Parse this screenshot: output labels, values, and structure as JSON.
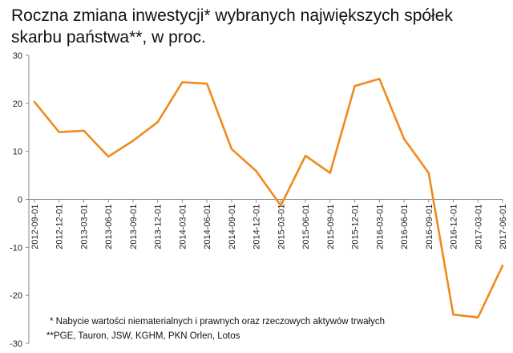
{
  "chart_data": {
    "type": "line",
    "title": "Roczna zmiana inwestycji* wybranych największych spółek skarbu państwa**, w proc.",
    "xlabel": "",
    "ylabel": "",
    "ylim": [
      -30,
      30
    ],
    "yticks": [
      30,
      20,
      10,
      0,
      -10,
      -20,
      -30
    ],
    "grid": false,
    "legend": "none",
    "line_color": "#f08a1c",
    "categories": [
      "2012-09-01",
      "2012-12-01",
      "2013-03-01",
      "2013-06-01",
      "2013-09-01",
      "2013-12-01",
      "2014-03-01",
      "2014-06-01",
      "2014-09-01",
      "2014-12-01",
      "2015-03-01",
      "2015-06-01",
      "2015-09-01",
      "2015-12-01",
      "2016-03-01",
      "2016-06-01",
      "2016-09-01",
      "2016-12-01",
      "2017-03-01",
      "2017-06-01"
    ],
    "values": [
      20.3,
      14.0,
      14.3,
      8.9,
      12.2,
      16.1,
      24.4,
      24.1,
      10.5,
      5.9,
      -1.3,
      9.1,
      5.5,
      23.6,
      25.1,
      12.6,
      5.5,
      -24.0,
      -24.6,
      -13.8
    ],
    "notes": [
      "* Nabycie wartości niematerialnych i prawnych oraz rzeczowych aktywów trwałych",
      "**PGE, Tauron, JSW, KGHM, PKN Orlen, Lotos"
    ]
  }
}
